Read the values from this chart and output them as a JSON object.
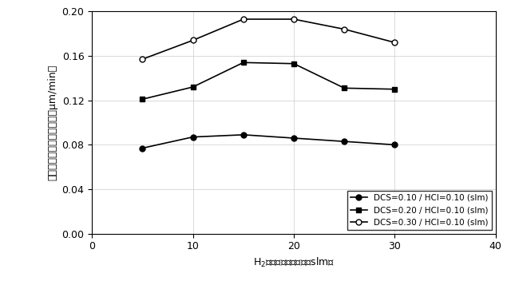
{
  "x": [
    5,
    10,
    15,
    20,
    25,
    30
  ],
  "series": [
    {
      "label": "DCS=0.10 / HCl=0.10 (slm)",
      "y": [
        0.077,
        0.087,
        0.089,
        0.086,
        0.083,
        0.08
      ],
      "marker": "o",
      "markerfacecolor": "black",
      "markeredgecolor": "black",
      "color": "black",
      "linestyle": "-"
    },
    {
      "label": "DCS=0.20 / HCl=0.10 (slm)",
      "y": [
        0.121,
        0.132,
        0.154,
        0.153,
        0.131,
        0.13
      ],
      "marker": "s",
      "markerfacecolor": "black",
      "markeredgecolor": "black",
      "color": "black",
      "linestyle": "-"
    },
    {
      "label": "DCS=0.30 / HCl=0.10 (slm)",
      "y": [
        0.157,
        0.174,
        0.193,
        0.193,
        0.184,
        0.172
      ],
      "marker": "o",
      "markerfacecolor": "white",
      "markeredgecolor": "black",
      "color": "black",
      "linestyle": "-"
    }
  ],
  "xlabel": "H$_2$キャリアガス流量（slm）",
  "ylabel": "エピタキシャル成長速度（μm/min）",
  "xlim": [
    0,
    40
  ],
  "ylim": [
    0.0,
    0.2
  ],
  "xticks": [
    0,
    10,
    20,
    30,
    40
  ],
  "yticks": [
    0.0,
    0.04,
    0.08,
    0.12,
    0.16,
    0.2
  ],
  "grid": true,
  "legend_loc": "lower right",
  "background_color": "#ffffff",
  "markersize": 5,
  "linewidth": 1.2
}
